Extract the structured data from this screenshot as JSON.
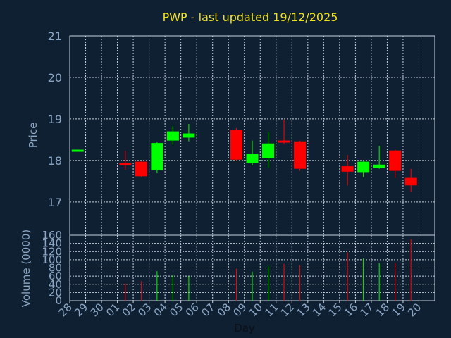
{
  "chart_data": {
    "type": "candlestick",
    "title": "PWP - last updated 19/12/2025",
    "price_panel": {
      "ylabel": "Price",
      "ylim": [
        16.2,
        21.0
      ],
      "yticks": [
        17,
        18,
        19,
        20,
        21
      ],
      "grid": true
    },
    "volume_panel": {
      "ylabel": "Volume (0000)",
      "ylim": [
        0,
        160
      ],
      "yticks": [
        0,
        20,
        40,
        60,
        80,
        100,
        120,
        140,
        160
      ],
      "grid": true
    },
    "xlabel": "Day",
    "categories": [
      "28",
      "29",
      "30",
      "01",
      "02",
      "03",
      "04",
      "05",
      "06",
      "07",
      "08",
      "09",
      "10",
      "11",
      "12",
      "13",
      "14",
      "15",
      "16",
      "17",
      "18",
      "19",
      "20"
    ],
    "colors": {
      "up": "#00ff00",
      "down": "#ff0000",
      "background": "#102033",
      "title": "#f2e21c"
    },
    "candles": [
      {
        "day": "28",
        "open": 18.22,
        "high": 18.26,
        "low": 18.22,
        "close": 18.26,
        "volume": 0
      },
      {
        "day": "01",
        "open": 17.93,
        "high": 18.23,
        "low": 17.78,
        "close": 17.9,
        "volume": 42
      },
      {
        "day": "02",
        "open": 17.97,
        "high": 17.99,
        "low": 17.6,
        "close": 17.62,
        "volume": 48
      },
      {
        "day": "03",
        "open": 17.76,
        "high": 18.44,
        "low": 17.71,
        "close": 18.42,
        "volume": 72
      },
      {
        "day": "04",
        "open": 18.48,
        "high": 18.83,
        "low": 18.38,
        "close": 18.7,
        "volume": 62
      },
      {
        "day": "05",
        "open": 18.55,
        "high": 18.88,
        "low": 18.46,
        "close": 18.65,
        "volume": 60
      },
      {
        "day": "08",
        "open": 18.74,
        "high": 18.78,
        "low": 18.0,
        "close": 18.02,
        "volume": 78
      },
      {
        "day": "09",
        "open": 17.93,
        "high": 18.48,
        "low": 17.88,
        "close": 18.16,
        "volume": 71
      },
      {
        "day": "10",
        "open": 18.06,
        "high": 18.69,
        "low": 17.82,
        "close": 18.41,
        "volume": 85
      },
      {
        "day": "11",
        "open": 18.48,
        "high": 18.98,
        "low": 18.4,
        "close": 18.45,
        "volume": 90
      },
      {
        "day": "12",
        "open": 18.46,
        "high": 18.48,
        "low": 17.75,
        "close": 17.8,
        "volume": 87
      },
      {
        "day": "15",
        "open": 17.86,
        "high": 18.13,
        "low": 17.4,
        "close": 17.73,
        "volume": 118
      },
      {
        "day": "16",
        "open": 17.72,
        "high": 17.98,
        "low": 17.6,
        "close": 17.97,
        "volume": 103
      },
      {
        "day": "17",
        "open": 17.82,
        "high": 18.35,
        "low": 17.8,
        "close": 17.9,
        "volume": 92
      },
      {
        "day": "18",
        "open": 18.24,
        "high": 18.26,
        "low": 17.58,
        "close": 17.75,
        "volume": 92
      },
      {
        "day": "19",
        "open": 17.58,
        "high": 17.8,
        "low": 17.25,
        "close": 17.4,
        "volume": 150
      }
    ]
  }
}
